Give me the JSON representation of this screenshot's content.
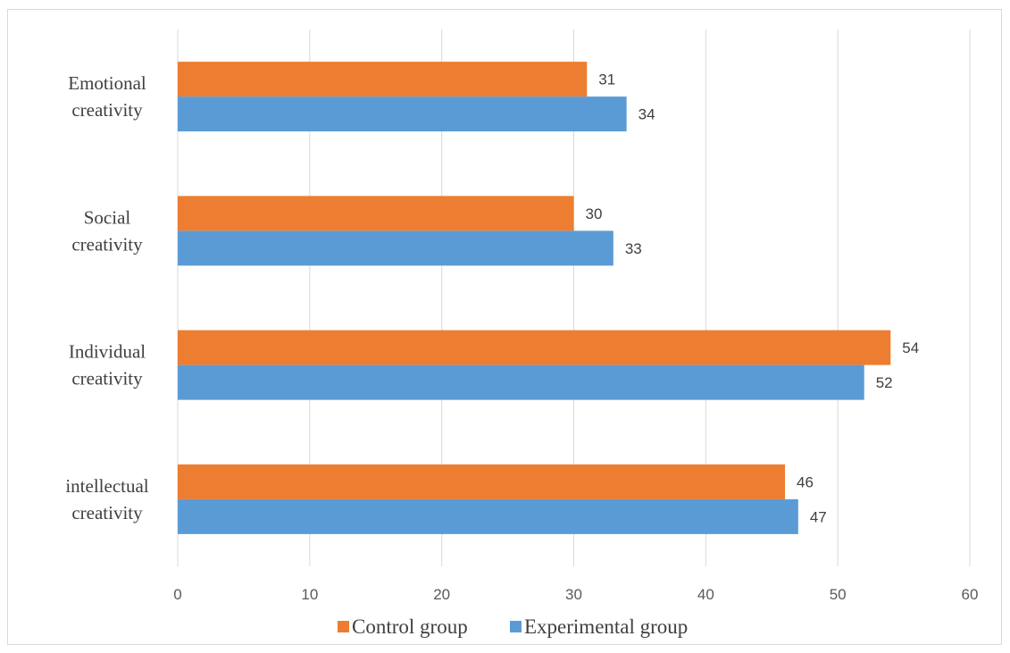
{
  "chart_data": {
    "type": "bar",
    "orientation": "horizontal",
    "categories": [
      "Emotional creativity",
      "Social creativity",
      "Individual creativity",
      "intellectual creativity"
    ],
    "category_lines": [
      [
        "Emotional",
        "creativity"
      ],
      [
        "Social",
        "creativity"
      ],
      [
        "Individual",
        "creativity"
      ],
      [
        "intellectual",
        "creativity"
      ]
    ],
    "series": [
      {
        "name": "Control group",
        "values": [
          31,
          30,
          54,
          46
        ],
        "color": "#ed7d31"
      },
      {
        "name": "Experimental group",
        "values": [
          34,
          33,
          52,
          47
        ],
        "color": "#5b9bd5"
      }
    ],
    "xlim": [
      0,
      60
    ],
    "xticks": [
      0,
      10,
      20,
      30,
      40,
      50,
      60
    ],
    "grid": "vertical",
    "legend_position": "bottom",
    "title": "",
    "xlabel": "",
    "ylabel": ""
  }
}
